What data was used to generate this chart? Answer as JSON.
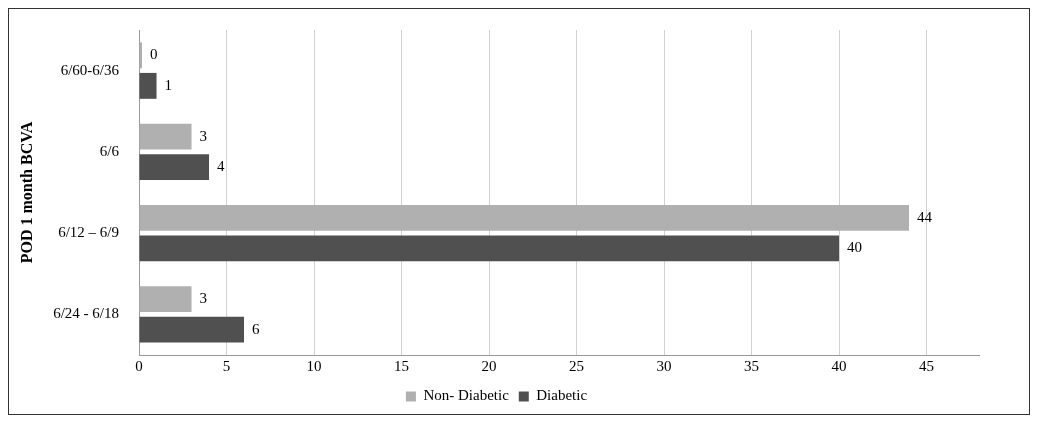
{
  "chart_data": {
    "type": "bar",
    "orientation": "horizontal",
    "ylabel": "POD 1 month BCVA",
    "categories": [
      "6/60-6/36",
      "6/6",
      "6/12 – 6/9",
      "6/24 - 6/18"
    ],
    "series": [
      {
        "name": "Non- Diabetic",
        "color": "#b0b0b0",
        "values": [
          0,
          3,
          44,
          3
        ]
      },
      {
        "name": "Diabetic",
        "color": "#505050",
        "values": [
          1,
          4,
          40,
          6
        ]
      }
    ],
    "xlim": [
      0,
      48
    ],
    "xticks": [
      0,
      5,
      10,
      15,
      20,
      25,
      30,
      35,
      40,
      45
    ],
    "grid": "x",
    "legend": "bottom",
    "data_labels": true
  }
}
